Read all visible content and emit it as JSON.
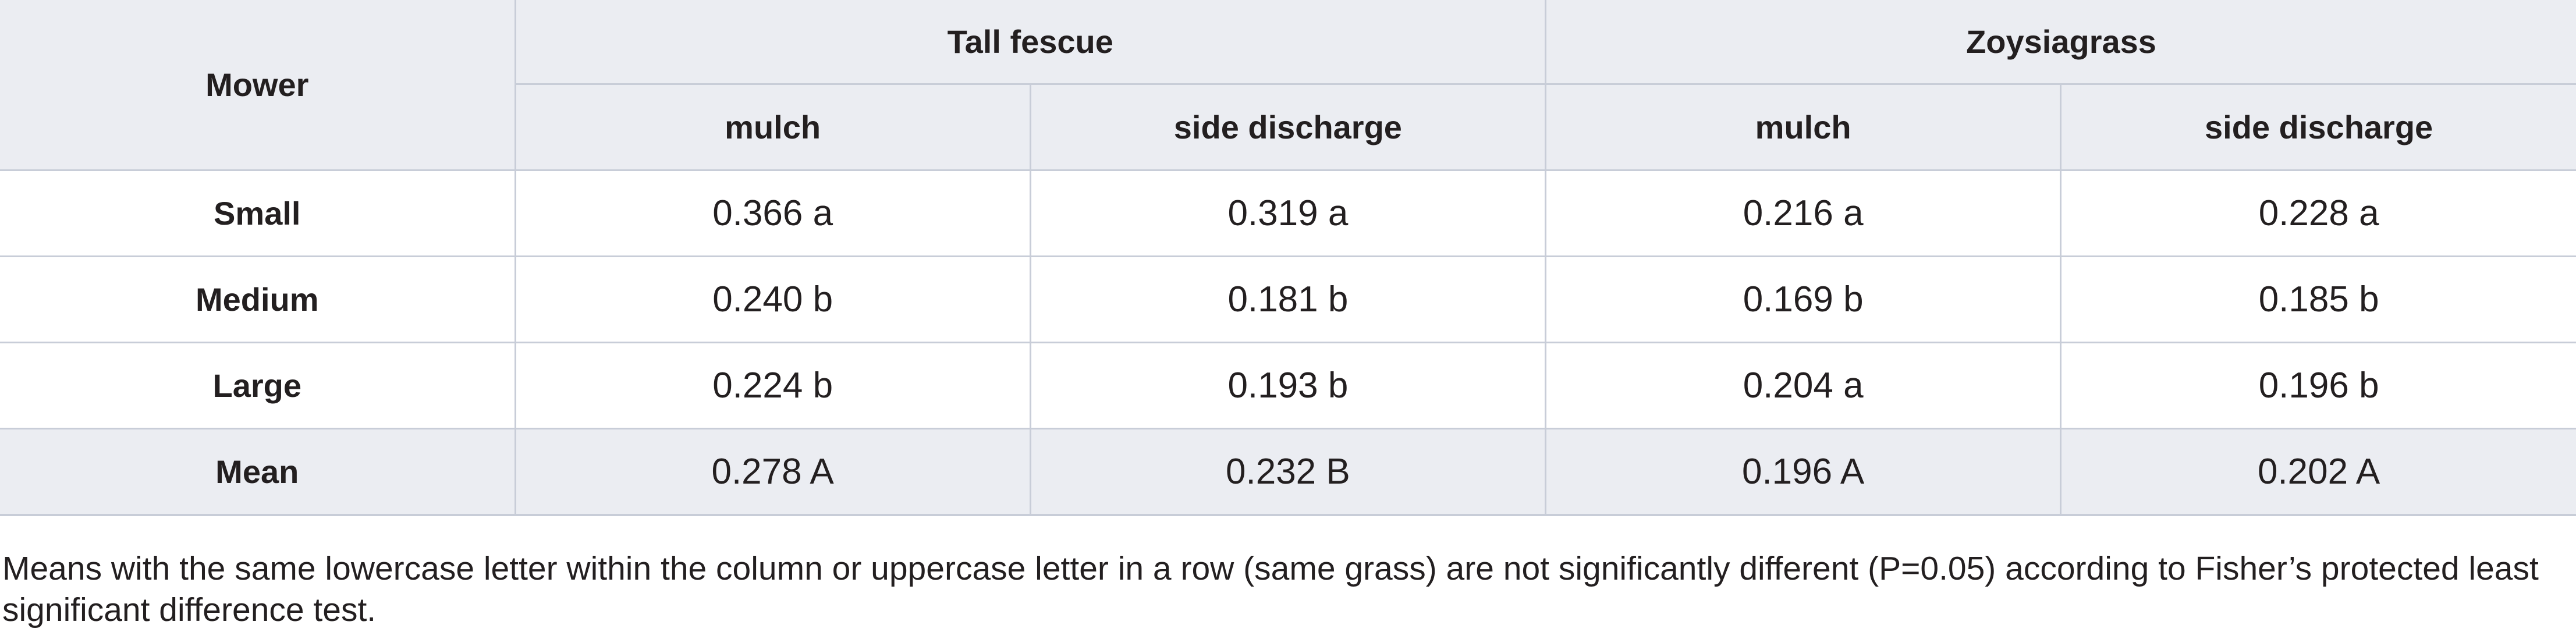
{
  "table": {
    "header": {
      "row_label_header": "Mower",
      "groups": [
        {
          "label": "Tall fescue",
          "subcolumns": [
            "mulch",
            "side discharge"
          ]
        },
        {
          "label": "Zoysiagrass",
          "subcolumns": [
            "mulch",
            "side discharge"
          ]
        }
      ]
    },
    "rows": [
      {
        "label": "Small",
        "cells": [
          "0.366 a",
          "0.319 a",
          "0.216 a",
          "0.228 a"
        ]
      },
      {
        "label": "Medium",
        "cells": [
          "0.240 b",
          "0.181 b",
          "0.169 b",
          "0.185 b"
        ]
      },
      {
        "label": "Large",
        "cells": [
          "0.224 b",
          "0.193 b",
          "0.204 a",
          "0.196 b"
        ]
      },
      {
        "label": "Mean",
        "cells": [
          "0.278 A",
          "0.232 B",
          "0.196 A",
          "0.202 A"
        ]
      }
    ]
  },
  "footnote": "Means with the same lowercase letter within the column or uppercase letter in a row (same grass) are not significantly different (P=0.05) according to Fisher’s protected least significant difference test.",
  "colors": {
    "header_background": "#ebedf2",
    "shaded_row_background": "#ebedf2",
    "border": "#c8cdd8",
    "text": "#231f20"
  }
}
